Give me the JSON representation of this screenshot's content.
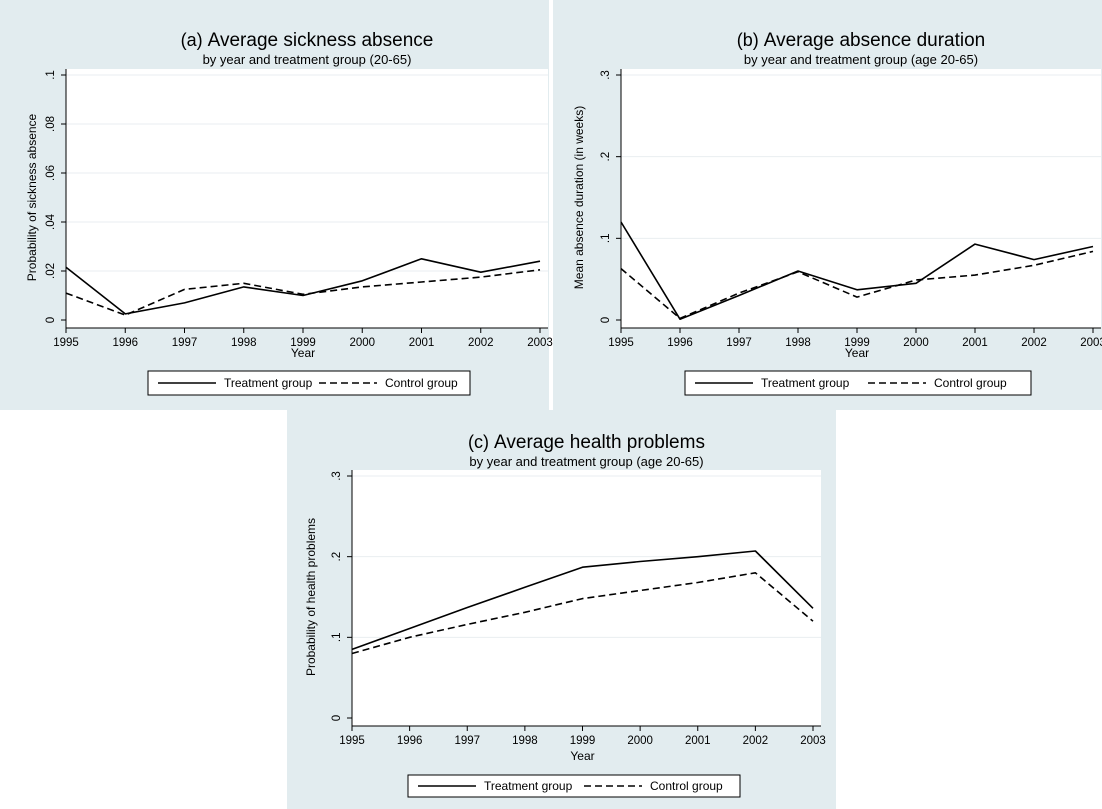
{
  "chart_data": [
    {
      "type": "line",
      "panel": "a",
      "title_prefix": "(a)",
      "title": "Average sickness absence",
      "subtitle": "by year and treatment group (20-65)",
      "xlabel": "Year",
      "ylabel": "Probability of sickness absence",
      "x": [
        1995,
        1996,
        1997,
        1998,
        1999,
        2000,
        2001,
        2002,
        2003
      ],
      "ylim": [
        0,
        0.1
      ],
      "yticks": [
        0,
        0.02,
        0.04,
        0.06,
        0.08,
        0.1
      ],
      "ytick_labels": [
        "0",
        ".02",
        ".04",
        ".06",
        ".08",
        ".1"
      ],
      "grid": true,
      "legend_position": "bottom",
      "series": [
        {
          "name": "Treatment group",
          "style": "solid",
          "values": [
            0.0215,
            0.0025,
            0.007,
            0.0135,
            0.01,
            0.016,
            0.025,
            0.0195,
            0.024
          ]
        },
        {
          "name": "Control group",
          "style": "dashed",
          "values": [
            0.011,
            0.002,
            0.0125,
            0.015,
            0.0105,
            0.0135,
            0.0155,
            0.0175,
            0.0205
          ]
        }
      ]
    },
    {
      "type": "line",
      "panel": "b",
      "title_prefix": "(b)",
      "title": "Average absence duration",
      "subtitle": "by year and treatment group (age 20-65)",
      "xlabel": "Year",
      "ylabel": "Mean absence duration (in weeks)",
      "x": [
        1995,
        1996,
        1997,
        1998,
        1999,
        2000,
        2001,
        2002,
        2003
      ],
      "ylim": [
        0,
        0.3
      ],
      "yticks": [
        0,
        0.1,
        0.2,
        0.3
      ],
      "ytick_labels": [
        "0",
        ".1",
        ".2",
        ".3"
      ],
      "grid": true,
      "legend_position": "bottom",
      "series": [
        {
          "name": "Treatment group",
          "style": "solid",
          "values": [
            0.12,
            0.001,
            0.03,
            0.06,
            0.037,
            0.045,
            0.093,
            0.074,
            0.09
          ]
        },
        {
          "name": "Control group",
          "style": "dashed",
          "values": [
            0.063,
            0.002,
            0.033,
            0.059,
            0.028,
            0.049,
            0.055,
            0.067,
            0.084
          ]
        }
      ]
    },
    {
      "type": "line",
      "panel": "c",
      "title_prefix": "(c)",
      "title": "Average health problems",
      "subtitle": "by year and treatment group (age 20-65)",
      "xlabel": "Year",
      "ylabel": "Probability of health problems",
      "x": [
        1995,
        1996,
        1997,
        1998,
        1999,
        2000,
        2001,
        2002,
        2003
      ],
      "ylim": [
        0,
        0.3
      ],
      "yticks": [
        0,
        0.1,
        0.2,
        0.3
      ],
      "ytick_labels": [
        "0",
        ".1",
        ".2",
        ".3"
      ],
      "grid": true,
      "legend_position": "bottom",
      "series": [
        {
          "name": "Treatment group",
          "style": "solid",
          "values": [
            0.085,
            0.111,
            0.137,
            0.162,
            0.187,
            0.194,
            0.2,
            0.207,
            0.136
          ]
        },
        {
          "name": "Control group",
          "style": "dashed",
          "values": [
            0.08,
            0.1,
            0.116,
            0.131,
            0.148,
            0.158,
            0.168,
            0.18,
            0.12
          ]
        }
      ]
    }
  ]
}
